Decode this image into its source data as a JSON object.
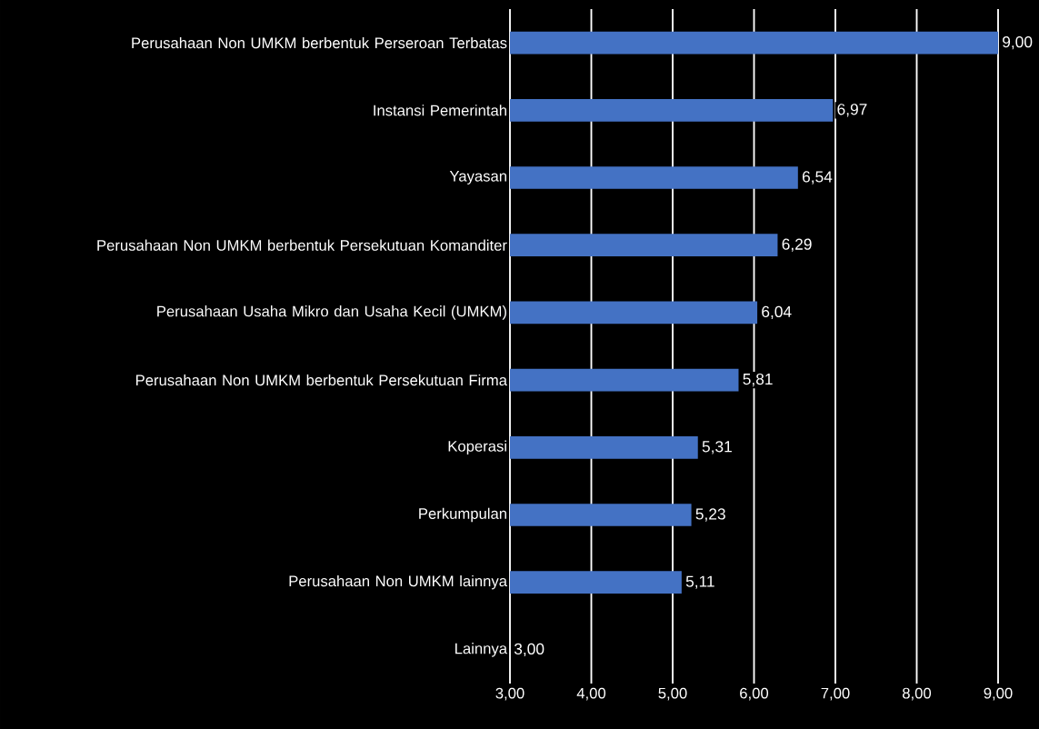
{
  "chart_data": {
    "type": "bar",
    "orientation": "horizontal",
    "categories": [
      "Perusahaan Non UMKM berbentuk Perseroan Terbatas",
      "Instansi Pemerintah",
      "Yayasan",
      "Perusahaan Non UMKM berbentuk Persekutuan Komanditer",
      "Perusahaan Usaha Mikro dan Usaha Kecil (UMKM)",
      "Perusahaan Non UMKM berbentuk Persekutuan Firma",
      "Koperasi",
      "Perkumpulan",
      "Perusahaan Non UMKM lainnya",
      "Lainnya"
    ],
    "values": [
      9.0,
      6.97,
      6.54,
      6.29,
      6.04,
      5.81,
      5.31,
      5.23,
      5.11,
      3.0
    ],
    "value_labels": [
      "9,00",
      "6,97",
      "6,54",
      "6,29",
      "6,04",
      "5,81",
      "5,31",
      "5,23",
      "5,11",
      "3,00"
    ],
    "color": "#4472c4",
    "xlim": [
      3,
      9
    ],
    "xticks": [
      {
        "value": 3,
        "label": "3,00"
      },
      {
        "value": 4,
        "label": "4,00"
      },
      {
        "value": 5,
        "label": "5,00"
      },
      {
        "value": 6,
        "label": "6,00"
      },
      {
        "value": 7,
        "label": "7,00"
      },
      {
        "value": 8,
        "label": "8,00"
      },
      {
        "value": 9,
        "label": "9,00"
      }
    ],
    "grid": "x"
  }
}
